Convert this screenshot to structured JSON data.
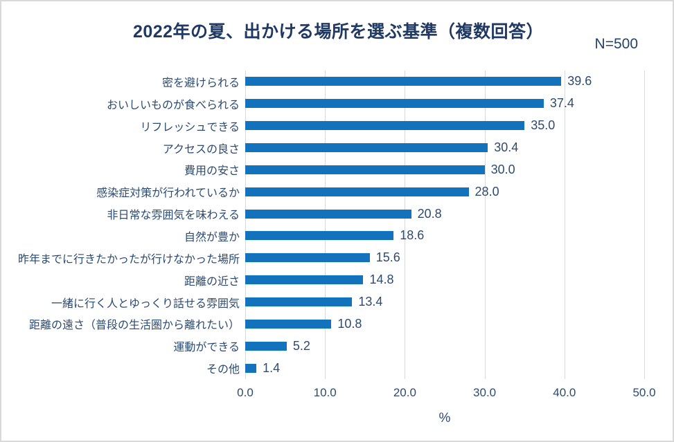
{
  "chart_data": {
    "type": "bar",
    "orientation": "horizontal",
    "title": "2022年の夏、出かける場所を選ぶ基準（複数回答）",
    "sample_size_label": "N=500",
    "categories": [
      "密を避けられる",
      "おいしいものが食べられる",
      "リフレッシュできる",
      "アクセスの良さ",
      "費用の安さ",
      "感染症対策が行われているか",
      "非日常な雰囲気を味わえる",
      "自然が豊か",
      "昨年までに行きたかったが行けなかった場所",
      "距離の近さ",
      "一緒に行く人とゆっくり話せる雰囲気",
      "距離の遠さ（普段の生活圏から離れたい）",
      "運動ができる",
      "その他"
    ],
    "values": [
      39.6,
      37.4,
      35.0,
      30.4,
      30.0,
      28.0,
      20.8,
      18.6,
      15.6,
      14.8,
      13.4,
      10.8,
      5.2,
      1.4
    ],
    "value_labels": [
      "39.6",
      "37.4",
      "35.0",
      "30.4",
      "30.0",
      "28.0",
      "20.8",
      "18.6",
      "15.6",
      "14.8",
      "13.4",
      "10.8",
      "5.2",
      "1.4"
    ],
    "xlabel": "%",
    "xlim": [
      0,
      50
    ],
    "x_ticks": [
      "0.0",
      "10.0",
      "20.0",
      "30.0",
      "40.0",
      "50.0"
    ],
    "grid": "vertical-gridlines-on",
    "legend": "none",
    "colors": {
      "bar": "#1272bc",
      "title_text": "#1f3864",
      "label_text": "#2a4a72",
      "gridline": "#d9d9d9",
      "border": "#d9d9d9",
      "background": "#ffffff"
    }
  }
}
